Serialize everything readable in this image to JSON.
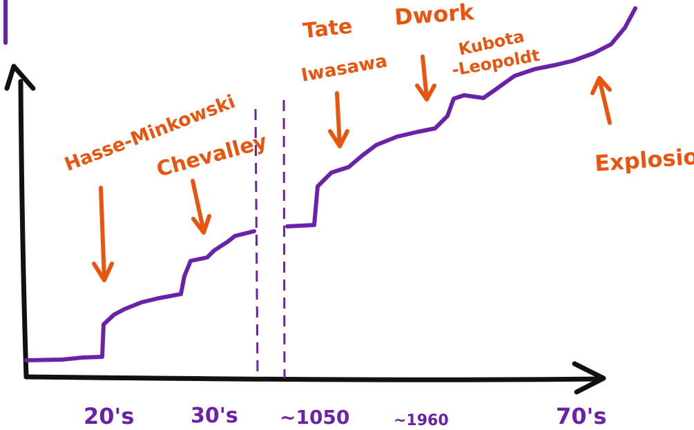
{
  "colors": {
    "axis": "#111111",
    "curve": "#6a23a8",
    "annotation": "#e8550f",
    "break_line": "#6a23a8"
  },
  "x_ticks": [
    "20's",
    "30's",
    "~1050",
    "~1960",
    "70's"
  ],
  "annotations": [
    {
      "id": "hasse",
      "text": "Hasse-Minkowski"
    },
    {
      "id": "chevalley",
      "text": "Chevalley"
    },
    {
      "id": "tate",
      "text": "Tate"
    },
    {
      "id": "iwasawa",
      "text": "Iwasawa"
    },
    {
      "id": "dwork",
      "text": "Dwork"
    },
    {
      "id": "kubota",
      "text": "Kubota"
    },
    {
      "id": "leopoldt",
      "text": "-Leopoldt"
    },
    {
      "id": "explosion",
      "text": "Explosion"
    }
  ]
}
